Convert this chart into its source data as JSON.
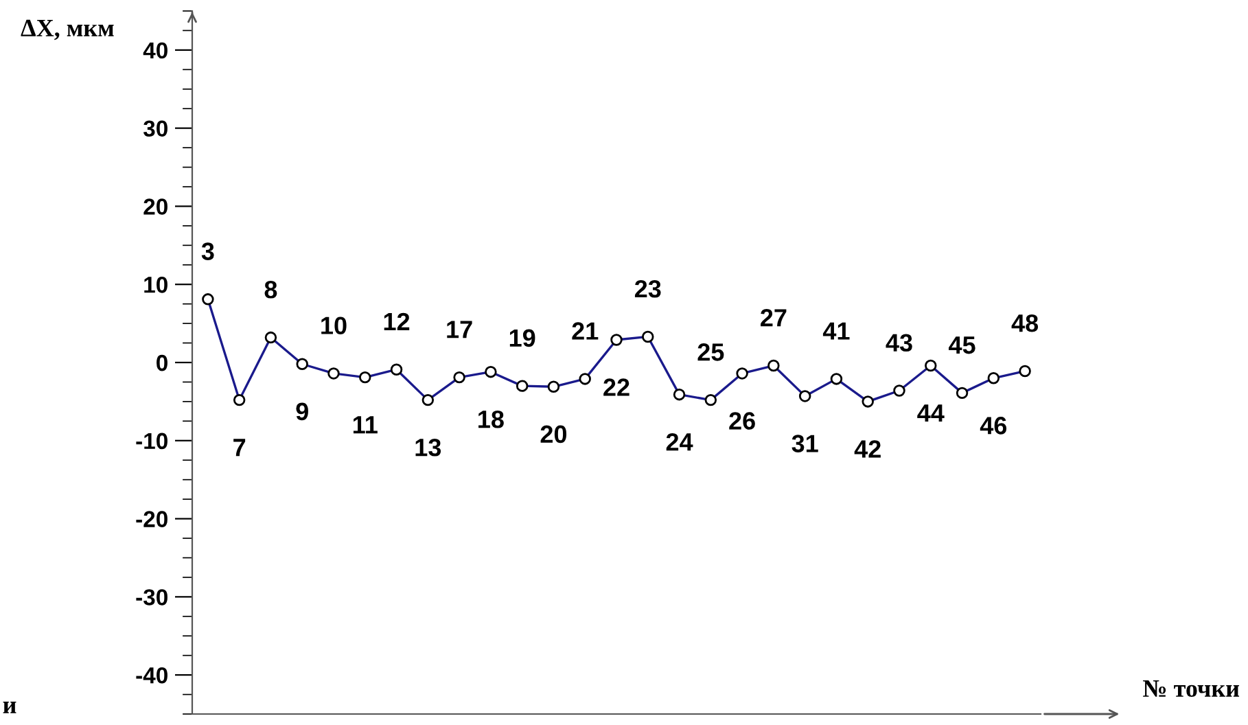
{
  "chart_data": {
    "type": "line",
    "xlabel": "№ точки",
    "ylabel": "ΔX, мкм",
    "annotations": [
      "и"
    ],
    "categories": [
      "3",
      "7",
      "8",
      "9",
      "10",
      "11",
      "12",
      "13",
      "17",
      "18",
      "19",
      "20",
      "21",
      "22",
      "23",
      "24",
      "25",
      "26",
      "27",
      "31",
      "41",
      "42",
      "43",
      "44",
      "45",
      "46",
      "48"
    ],
    "series": [
      {
        "color": "#1a1a8c",
        "values": [
          8.1,
          -4.8,
          3.2,
          -0.2,
          -1.4,
          -1.9,
          -0.9,
          -4.8,
          -1.9,
          -1.2,
          -3.0,
          -3.1,
          -2.1,
          2.9,
          3.3,
          -4.1,
          -4.8,
          -1.4,
          -0.4,
          -4.3,
          -2.1,
          -5.0,
          -3.6,
          -0.4,
          -3.9,
          -2.0,
          -1.1
        ]
      }
    ],
    "ylim": [
      -45,
      45
    ],
    "yticks": [
      -40,
      -30,
      -20,
      -10,
      0,
      10,
      20,
      30,
      40
    ],
    "marker": "circle",
    "line_style": "solid",
    "grid": false,
    "legend": false,
    "tick_labels": "y"
  }
}
